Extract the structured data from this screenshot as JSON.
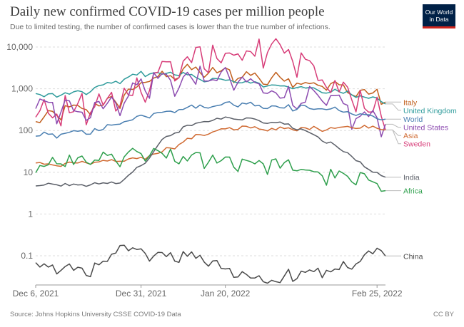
{
  "header": {
    "title": "Daily new confirmed COVID-19 cases per million people",
    "subtitle": "Due to limited testing, the number of confirmed cases is lower than the true number of infections."
  },
  "logo": {
    "line1": "Our World",
    "line2": "in Data",
    "bg_color": "#002147",
    "accent_color": "#ce261e"
  },
  "footer": {
    "source": "Source: Johns Hopkins University CSSE COVID-19 Data",
    "license": "CC BY"
  },
  "chart_data": {
    "type": "line",
    "yscale": "log",
    "ylim": [
      0.02,
      10000
    ],
    "y_ticks": [
      {
        "value": 10000,
        "label": "10,000"
      },
      {
        "value": 1000,
        "label": "1,000"
      },
      {
        "value": 100,
        "label": "100"
      },
      {
        "value": 10,
        "label": "10"
      },
      {
        "value": 1,
        "label": "1"
      },
      {
        "value": 0.1,
        "label": "0.1"
      }
    ],
    "x_ticks": [
      {
        "label": "Dec 6, 2021",
        "index": 0
      },
      {
        "label": "Dec 31, 2021",
        "index": 25
      },
      {
        "label": "Jan 20, 2022",
        "index": 45
      },
      {
        "label": "Feb 25, 2022",
        "index": 81
      }
    ],
    "x_range": [
      "Dec 4, 2021",
      "Feb 27, 2022"
    ],
    "grid": "horizontal-dashed",
    "legend": "right",
    "series": [
      {
        "name": "Italy",
        "color": "#c15f1d",
        "anchors": [
          [
            0,
            150
          ],
          [
            5,
            300
          ],
          [
            10,
            350
          ],
          [
            15,
            450
          ],
          [
            20,
            600
          ],
          [
            25,
            1500
          ],
          [
            30,
            2200
          ],
          [
            35,
            3000
          ],
          [
            40,
            2800
          ],
          [
            45,
            2600
          ],
          [
            50,
            2300
          ],
          [
            55,
            1900
          ],
          [
            60,
            2000
          ],
          [
            65,
            1500
          ],
          [
            70,
            1300
          ],
          [
            75,
            1000
          ],
          [
            80,
            800
          ],
          [
            83,
            680
          ]
        ]
      },
      {
        "name": "United Kingdom",
        "color": "#2e9b9b",
        "anchors": [
          [
            0,
            700
          ],
          [
            5,
            750
          ],
          [
            10,
            800
          ],
          [
            15,
            1100
          ],
          [
            18,
            1500
          ],
          [
            21,
            1800
          ],
          [
            25,
            2400
          ],
          [
            30,
            2500
          ],
          [
            35,
            2200
          ],
          [
            40,
            1800
          ],
          [
            45,
            1600
          ],
          [
            50,
            1500
          ],
          [
            55,
            1300
          ],
          [
            60,
            1200
          ],
          [
            65,
            1000
          ],
          [
            70,
            900
          ],
          [
            75,
            850
          ],
          [
            80,
            600
          ],
          [
            83,
            520
          ]
        ]
      },
      {
        "name": "Sweden",
        "color": "#d73c78",
        "anchors": [
          [
            0,
            300
          ],
          [
            5,
            350
          ],
          [
            10,
            400
          ],
          [
            15,
            500
          ],
          [
            20,
            700
          ],
          [
            25,
            1500
          ],
          [
            30,
            3500
          ],
          [
            35,
            5000
          ],
          [
            40,
            6000
          ],
          [
            45,
            8000
          ],
          [
            50,
            9000
          ],
          [
            55,
            9500
          ],
          [
            60,
            7000
          ],
          [
            65,
            4000
          ],
          [
            70,
            1500
          ],
          [
            75,
            700
          ],
          [
            80,
            400
          ],
          [
            83,
            320
          ]
        ]
      },
      {
        "name": "United States",
        "color": "#8c4bb0",
        "anchors": [
          [
            0,
            400
          ],
          [
            5,
            380
          ],
          [
            10,
            400
          ],
          [
            15,
            500
          ],
          [
            20,
            600
          ],
          [
            25,
            1500
          ],
          [
            30,
            2000
          ],
          [
            35,
            1800
          ],
          [
            40,
            2200
          ],
          [
            45,
            2100
          ],
          [
            50,
            1500
          ],
          [
            55,
            1200
          ],
          [
            60,
            800
          ],
          [
            65,
            700
          ],
          [
            70,
            550
          ],
          [
            75,
            300
          ],
          [
            80,
            200
          ],
          [
            83,
            230
          ]
        ]
      },
      {
        "name": "World",
        "color": "#4a7fb1",
        "anchors": [
          [
            0,
            80
          ],
          [
            5,
            85
          ],
          [
            10,
            90
          ],
          [
            15,
            110
          ],
          [
            20,
            160
          ],
          [
            25,
            230
          ],
          [
            30,
            300
          ],
          [
            35,
            350
          ],
          [
            40,
            400
          ],
          [
            45,
            450
          ],
          [
            50,
            460
          ],
          [
            55,
            400
          ],
          [
            60,
            380
          ],
          [
            65,
            360
          ],
          [
            70,
            340
          ],
          [
            75,
            280
          ],
          [
            80,
            220
          ],
          [
            83,
            200
          ]
        ]
      },
      {
        "name": "Asia",
        "color": "#d06a32",
        "anchors": [
          [
            0,
            16
          ],
          [
            5,
            16
          ],
          [
            10,
            17
          ],
          [
            15,
            18
          ],
          [
            20,
            19
          ],
          [
            25,
            23
          ],
          [
            30,
            33
          ],
          [
            35,
            55
          ],
          [
            40,
            90
          ],
          [
            45,
            110
          ],
          [
            50,
            120
          ],
          [
            55,
            115
          ],
          [
            60,
            110
          ],
          [
            65,
            115
          ],
          [
            70,
            120
          ],
          [
            75,
            125
          ],
          [
            80,
            125
          ],
          [
            83,
            120
          ]
        ]
      },
      {
        "name": "India",
        "color": "#5b5f68",
        "anchors": [
          [
            0,
            5
          ],
          [
            5,
            5.2
          ],
          [
            10,
            5
          ],
          [
            15,
            5.4
          ],
          [
            20,
            6
          ],
          [
            25,
            15
          ],
          [
            28,
            30
          ],
          [
            30,
            60
          ],
          [
            35,
            120
          ],
          [
            40,
            170
          ],
          [
            45,
            200
          ],
          [
            50,
            190
          ],
          [
            55,
            170
          ],
          [
            60,
            140
          ],
          [
            65,
            90
          ],
          [
            70,
            50
          ],
          [
            75,
            25
          ],
          [
            80,
            10
          ],
          [
            83,
            8
          ]
        ]
      },
      {
        "name": "Africa",
        "color": "#2e9f4c",
        "anchors": [
          [
            0,
            12
          ],
          [
            5,
            18
          ],
          [
            10,
            20
          ],
          [
            15,
            22
          ],
          [
            20,
            25
          ],
          [
            25,
            30
          ],
          [
            30,
            28
          ],
          [
            35,
            24
          ],
          [
            40,
            22
          ],
          [
            45,
            22
          ],
          [
            50,
            20
          ],
          [
            55,
            18
          ],
          [
            60,
            15
          ],
          [
            65,
            12
          ],
          [
            70,
            9
          ],
          [
            75,
            7.5
          ],
          [
            80,
            7
          ],
          [
            83,
            7
          ]
        ]
      },
      {
        "name": "China",
        "color": "#4a4a4a",
        "anchors": [
          [
            0,
            0.06
          ],
          [
            5,
            0.055
          ],
          [
            10,
            0.05
          ],
          [
            15,
            0.055
          ],
          [
            18,
            0.09
          ],
          [
            20,
            0.2
          ],
          [
            22,
            0.13
          ],
          [
            25,
            0.13
          ],
          [
            30,
            0.12
          ],
          [
            35,
            0.11
          ],
          [
            40,
            0.1
          ],
          [
            45,
            0.055
          ],
          [
            50,
            0.035
          ],
          [
            55,
            0.03
          ],
          [
            58,
            0.025
          ],
          [
            60,
            0.04
          ],
          [
            63,
            0.035
          ],
          [
            66,
            0.05
          ],
          [
            70,
            0.05
          ],
          [
            75,
            0.07
          ],
          [
            80,
            0.13
          ],
          [
            83,
            0.16
          ]
        ]
      }
    ]
  }
}
